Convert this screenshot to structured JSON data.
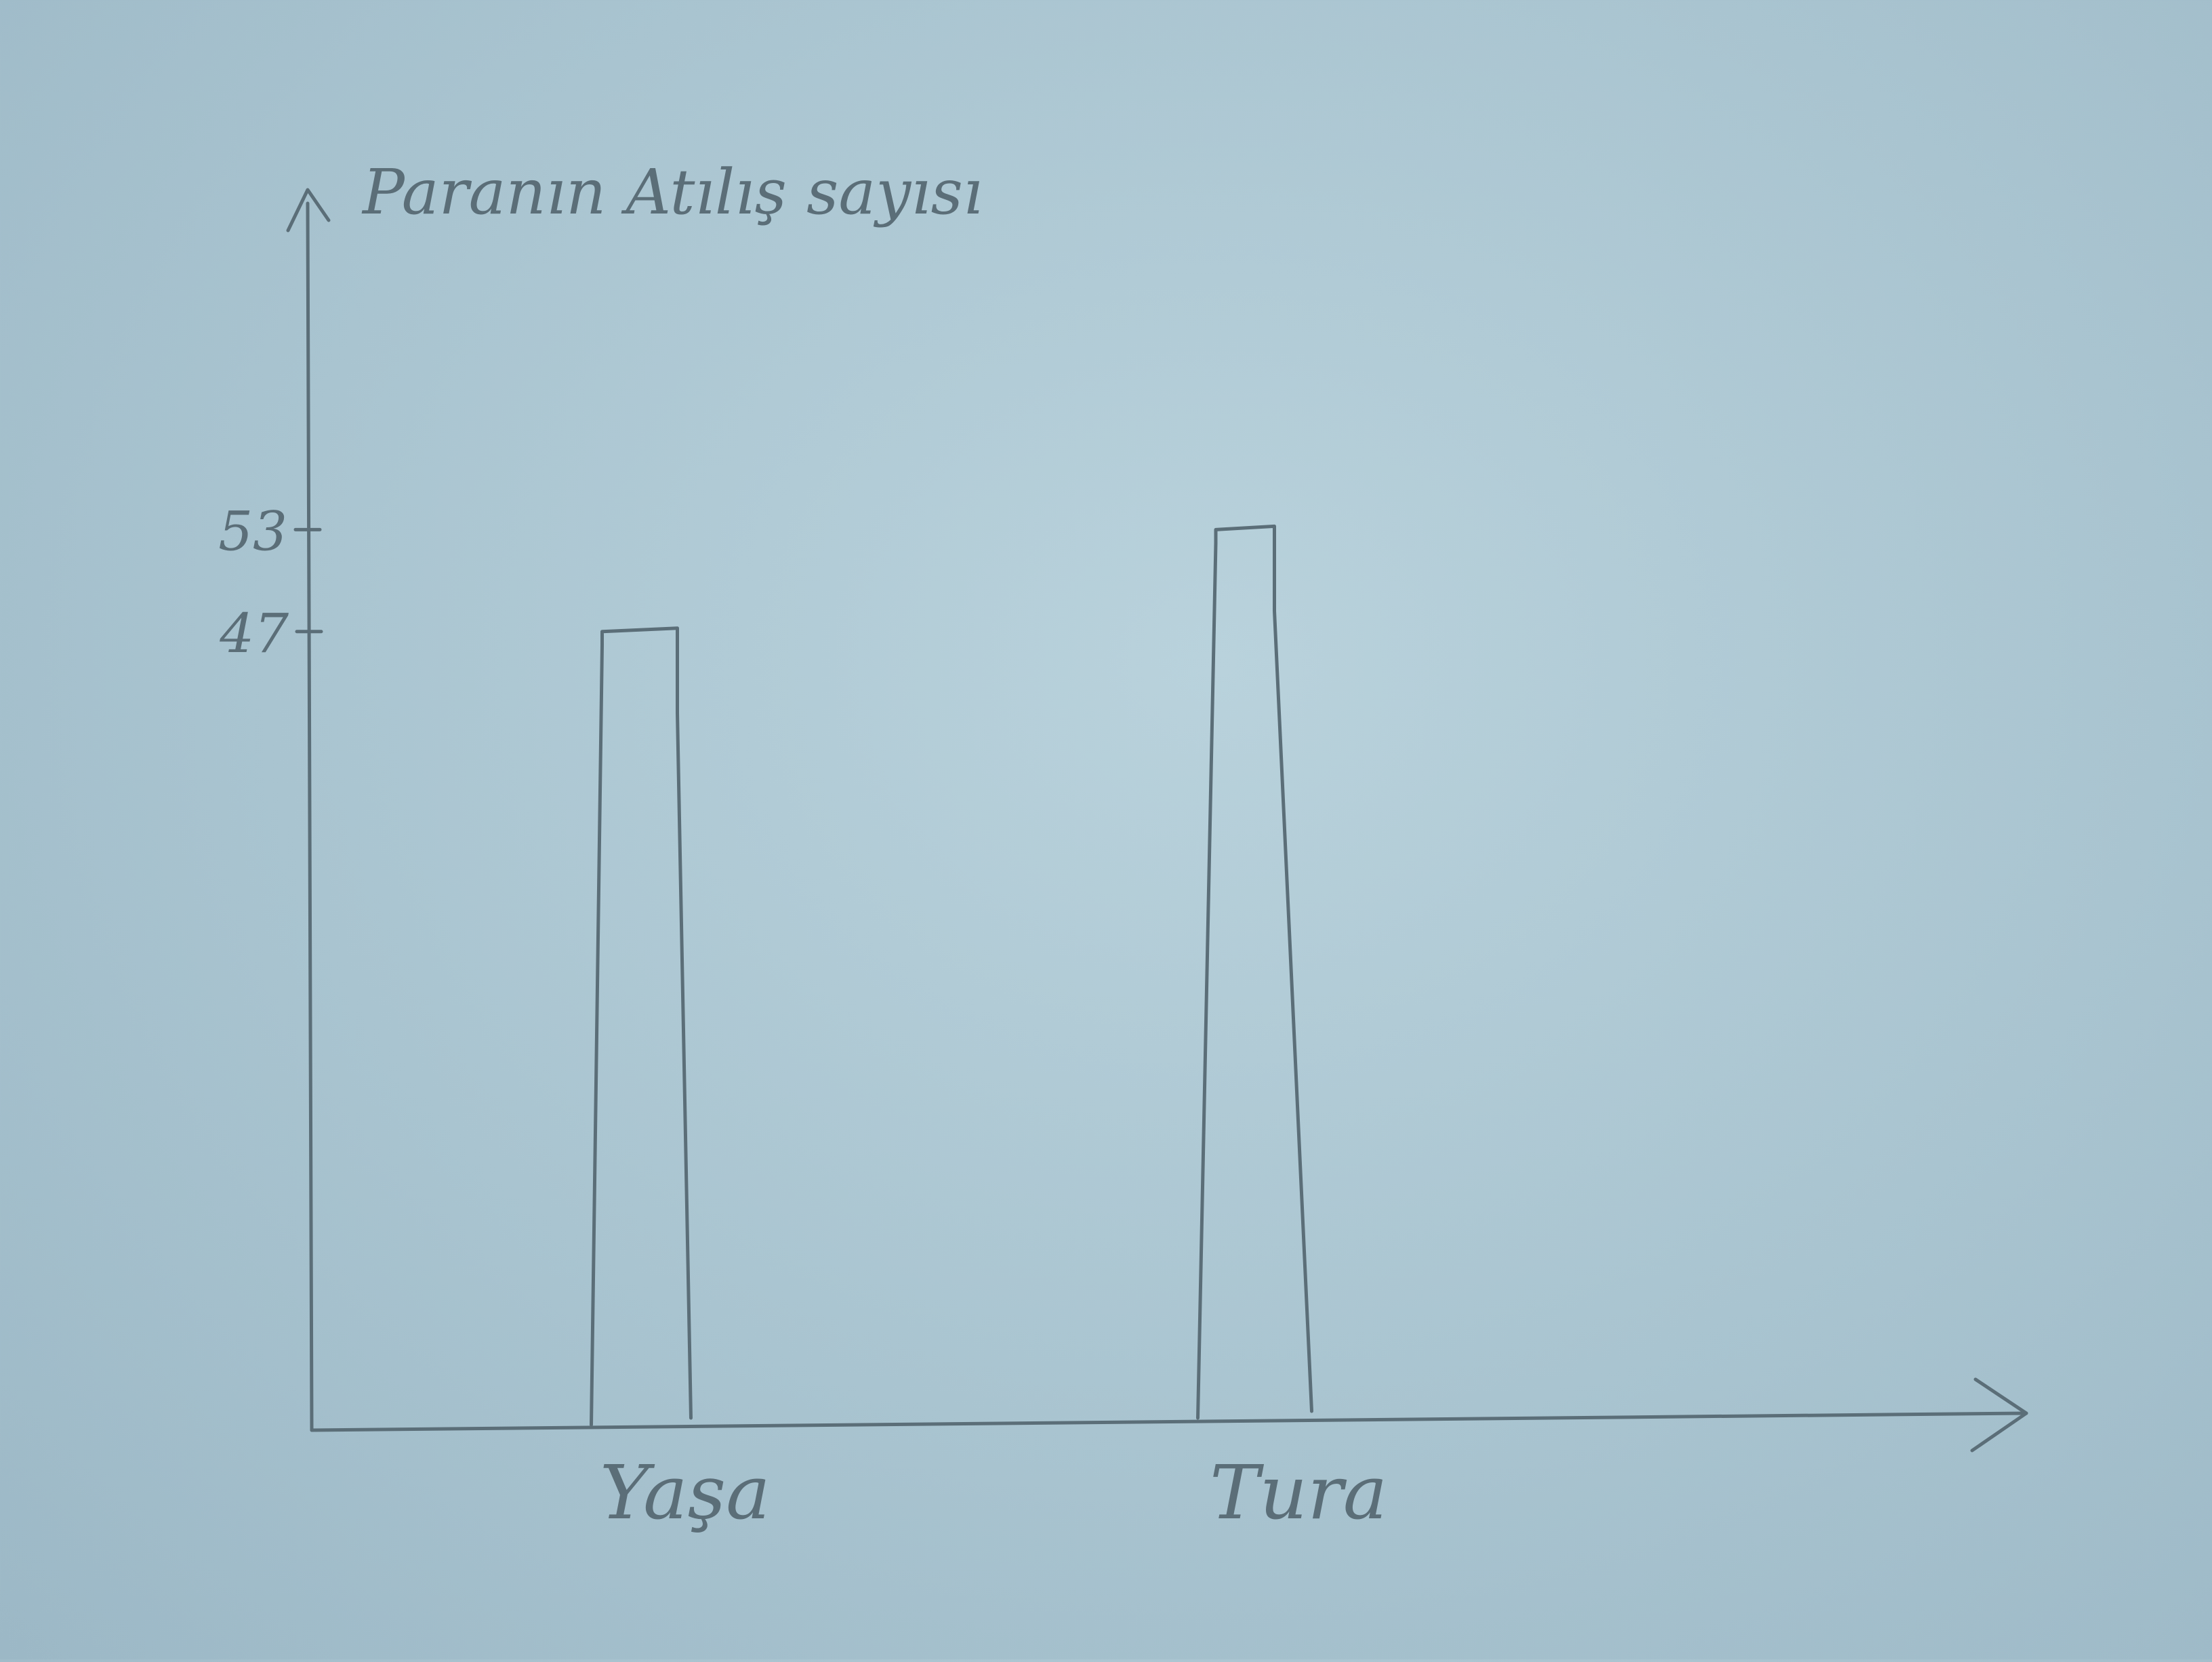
{
  "chart_data": {
    "type": "bar",
    "categories": [
      "Yaşa",
      "Tura"
    ],
    "values": [
      47,
      53
    ],
    "ylabel": "Paranın Atılış sayısı",
    "yticks": [
      47,
      53
    ],
    "ylim": [
      0,
      73
    ],
    "grid": false,
    "style": "hand-drawn pencil sketch on paper"
  },
  "colors": {
    "paper": "#a9c4d0",
    "pencil": "#5b6e78"
  }
}
